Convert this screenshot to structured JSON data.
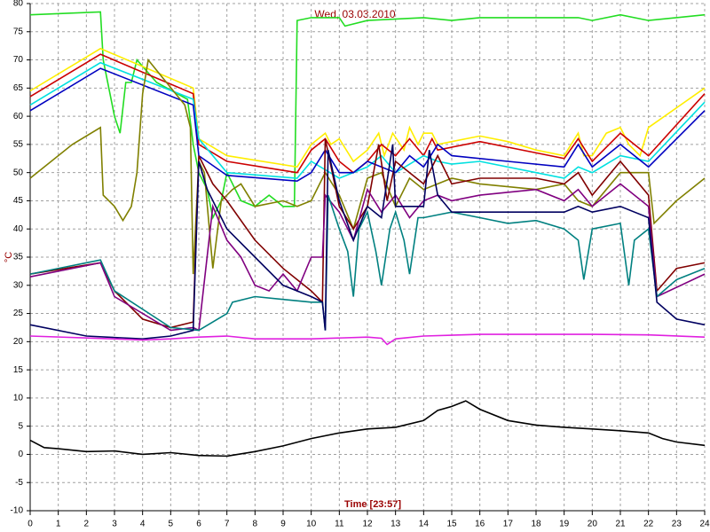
{
  "chart_data": {
    "type": "line",
    "title": "Wed, 03.03.2010",
    "xlabel": "Time [23:57]",
    "ylabel": "°C",
    "xlim": [
      0,
      24
    ],
    "ylim": [
      -10,
      80
    ],
    "xticks": [
      0,
      1,
      2,
      3,
      4,
      5,
      6,
      7,
      8,
      9,
      10,
      11,
      12,
      13,
      14,
      15,
      16,
      17,
      18,
      19,
      20,
      21,
      22,
      23,
      24
    ],
    "yticks": [
      -10,
      -5,
      0,
      5,
      10,
      15,
      20,
      25,
      30,
      35,
      40,
      45,
      50,
      55,
      60,
      65,
      70,
      75,
      80
    ],
    "grid": true,
    "series": [
      {
        "color": "#22dd22",
        "x": [
          0,
          2.5,
          2.6,
          3,
          3.2,
          3.4,
          3.6,
          3.8,
          4.5,
          5.6,
          5.8,
          6,
          6.3,
          6.5,
          6.8,
          7,
          7.5,
          8,
          8.5,
          9,
          9.4,
          9.5,
          10,
          11,
          11.2,
          12,
          14,
          15,
          16,
          18,
          19.5,
          20,
          21,
          22,
          24
        ],
        "values": [
          78,
          78.5,
          70,
          60,
          57,
          66,
          66,
          70,
          66,
          63,
          55,
          50,
          47,
          42,
          45,
          50,
          45,
          44,
          46,
          44,
          44,
          77,
          77.5,
          77.5,
          76,
          77,
          77.5,
          77,
          77.5,
          77.5,
          77.5,
          77,
          78,
          77,
          78
        ]
      },
      {
        "color": "#ffee00",
        "x": [
          0,
          2.5,
          5.8,
          6,
          7,
          9.5,
          10,
          10.5,
          10.7,
          11,
          11.5,
          12,
          12.4,
          12.6,
          12.9,
          13.3,
          13.5,
          13.8,
          14,
          14.3,
          14.5,
          15,
          16,
          17,
          18,
          19,
          19.5,
          19.7,
          20,
          20.5,
          21,
          21.3,
          21.7,
          22,
          24
        ],
        "values": [
          64.5,
          72,
          65,
          56,
          53,
          51,
          55,
          57,
          55,
          56,
          52,
          54,
          57,
          53,
          57,
          54,
          58,
          55,
          57,
          57,
          55,
          55.5,
          56.5,
          55.5,
          54,
          53,
          57,
          53,
          53,
          57,
          58,
          55,
          53,
          58,
          65
        ]
      },
      {
        "color": "#cc0000",
        "x": [
          0,
          2.5,
          5.8,
          6,
          7,
          9.5,
          10,
          10.5,
          11,
          11.5,
          12,
          12.5,
          13,
          13.5,
          14,
          14.3,
          14.5,
          16,
          18,
          19,
          19.5,
          20,
          21,
          22,
          24
        ],
        "values": [
          63.5,
          71,
          64,
          55,
          52,
          50,
          54,
          56,
          52,
          50,
          52,
          55,
          53,
          56,
          53,
          56,
          54,
          55.5,
          53.5,
          52.5,
          56,
          52,
          57,
          53,
          64
        ]
      },
      {
        "color": "#00e0e0",
        "x": [
          0,
          2.5,
          5.8,
          6,
          7,
          9.5,
          10,
          11,
          12,
          12.5,
          13,
          14,
          14.5,
          15,
          16,
          18,
          19,
          19.5,
          20,
          21,
          22,
          24
        ],
        "values": [
          62,
          69.5,
          63,
          56,
          50,
          49,
          52,
          49,
          51,
          53,
          50,
          53,
          52,
          51.5,
          52,
          50,
          49,
          51,
          50,
          53,
          52,
          62.5
        ]
      },
      {
        "color": "#0000c0",
        "x": [
          0,
          2.5,
          5.8,
          6,
          7,
          9.5,
          10,
          10.5,
          11,
          11.5,
          12,
          13,
          13.5,
          14,
          14.5,
          15,
          17,
          19,
          19.5,
          20,
          21,
          22,
          24
        ],
        "values": [
          61,
          68.5,
          62,
          53,
          49.5,
          48.5,
          50,
          54,
          50,
          50,
          52,
          50,
          53,
          51,
          55,
          53,
          52,
          51,
          55,
          51,
          55,
          51,
          61
        ]
      },
      {
        "color": "#808000",
        "x": [
          0,
          1.5,
          2.5,
          2.6,
          3,
          3.3,
          3.6,
          3.8,
          4,
          4.2,
          5.5,
          5.7,
          5.8,
          6,
          6.2,
          6.5,
          6.8,
          7.2,
          7.5,
          8,
          9,
          9.5,
          10,
          10.5,
          11,
          11.5,
          12,
          12.5,
          13,
          13.5,
          14,
          15,
          16,
          18,
          19,
          19.5,
          20,
          21,
          22,
          22.2,
          23,
          24
        ],
        "values": [
          49,
          55,
          58,
          46,
          44,
          41.5,
          44,
          50,
          64,
          70,
          62,
          58,
          32,
          52,
          50,
          33,
          45,
          47,
          48,
          44,
          45,
          44,
          45,
          50,
          46,
          40,
          49,
          50,
          44,
          49,
          47,
          49,
          48,
          47,
          48,
          45,
          44,
          50,
          50,
          41,
          45,
          49
        ]
      },
      {
        "color": "#800000",
        "x": [
          0,
          2.5,
          3,
          4,
          5,
          5.8,
          6,
          6.5,
          7,
          8,
          9,
          10,
          10.4,
          10.5,
          11,
          11.5,
          12,
          12.4,
          12.7,
          13,
          13.5,
          14,
          14.5,
          15,
          16,
          18,
          19,
          19.5,
          20,
          21,
          22,
          22.3,
          23,
          24
        ],
        "values": [
          32,
          34,
          29,
          24,
          22.5,
          23.5,
          53,
          48,
          45,
          38,
          33,
          29,
          27,
          56,
          44,
          40,
          44,
          55,
          45,
          52,
          50,
          48,
          53,
          48,
          49,
          49,
          48,
          50,
          46,
          52,
          46,
          29,
          33,
          34
        ]
      },
      {
        "color": "#800080",
        "x": [
          0,
          2.5,
          3,
          5,
          5.8,
          6,
          6.5,
          7,
          7.5,
          8,
          8.5,
          9,
          9.5,
          10,
          10.4,
          10.5,
          11,
          11.5,
          12,
          12.5,
          13,
          13.5,
          14,
          14.5,
          15,
          16,
          18,
          19,
          19.5,
          20,
          21,
          22,
          22.3,
          24
        ],
        "values": [
          31.5,
          34,
          28,
          22,
          22.5,
          22,
          44,
          38,
          35,
          30,
          29,
          32,
          29,
          35,
          35,
          46,
          43,
          38,
          47,
          43,
          46,
          42,
          45,
          46,
          45,
          46,
          47,
          45,
          47,
          44,
          48,
          44,
          28,
          32
        ]
      },
      {
        "color": "#008080",
        "x": [
          0,
          2.5,
          3,
          5,
          6,
          7,
          7.2,
          8,
          9,
          10,
          10.4,
          10.5,
          10.6,
          11,
          11.3,
          11.5,
          11.7,
          12,
          12.3,
          12.5,
          12.8,
          13,
          13.3,
          13.5,
          13.8,
          14,
          15,
          16,
          17,
          18,
          19,
          19.5,
          19.7,
          20,
          21,
          21.3,
          21.5,
          22,
          22.3,
          23,
          24
        ],
        "values": [
          32,
          34.5,
          29,
          22.5,
          22,
          25,
          27,
          28,
          27.5,
          27,
          27,
          22,
          46,
          40,
          36,
          28,
          40,
          43,
          36,
          30,
          40,
          43,
          38,
          32,
          42,
          42,
          43,
          42,
          41,
          41.5,
          40,
          38,
          31,
          40,
          41,
          30,
          38,
          40,
          28,
          31,
          33
        ]
      },
      {
        "color": "#000060",
        "x": [
          0,
          2,
          4,
          5,
          5.8,
          6,
          6.3,
          7,
          8,
          9,
          10,
          10.4,
          10.5,
          10.6,
          11,
          11.5,
          12,
          12.5,
          12.9,
          13,
          13.5,
          14,
          14.2,
          14.5,
          15,
          16,
          18,
          19,
          19.5,
          20,
          21,
          22,
          22.3,
          23,
          24
        ],
        "values": [
          23,
          21,
          20.5,
          21,
          22,
          52,
          47,
          40,
          35,
          30,
          28,
          27,
          22,
          54,
          45,
          38,
          44,
          42,
          55,
          44,
          44,
          44,
          54,
          46,
          43,
          43,
          43,
          43,
          44,
          43,
          44,
          42,
          27,
          24,
          23
        ]
      },
      {
        "color": "#e020e0",
        "x": [
          0,
          3,
          4,
          5,
          6,
          7,
          8,
          9,
          10,
          12,
          12.5,
          12.7,
          13,
          14,
          16,
          18,
          20,
          22,
          24
        ],
        "values": [
          21,
          20.5,
          20.3,
          20.5,
          20.8,
          21,
          20.5,
          20.5,
          20.5,
          20.8,
          20.6,
          19.5,
          20.5,
          21,
          21.3,
          21.3,
          21.3,
          21.2,
          20.8
        ]
      },
      {
        "color": "#000000",
        "x": [
          0,
          0.5,
          1,
          2,
          3,
          4,
          5,
          6,
          7,
          8,
          9,
          10,
          11,
          12,
          13,
          14,
          14.5,
          15,
          15.5,
          16,
          17,
          18,
          19,
          20,
          21,
          22,
          22.5,
          23,
          24
        ],
        "values": [
          2.5,
          1.2,
          1,
          0.5,
          0.6,
          0,
          0.3,
          -0.2,
          -0.3,
          0.5,
          1.5,
          2.8,
          3.8,
          4.5,
          4.8,
          6,
          7.8,
          8.5,
          9.5,
          8,
          6,
          5.2,
          4.8,
          4.5,
          4.2,
          3.8,
          2.8,
          2.2,
          1.6
        ]
      }
    ]
  }
}
